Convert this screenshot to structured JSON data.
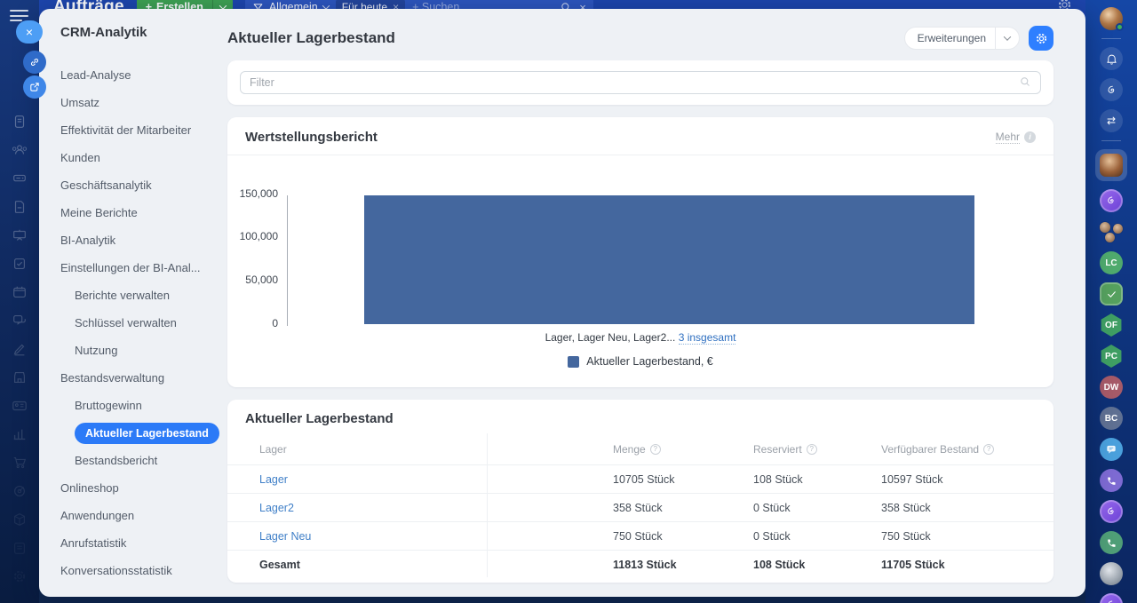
{
  "icons": {
    "plus": "+",
    "close": "×",
    "swap": "⇄",
    "question": "?",
    "info": "i"
  },
  "topbar": {
    "title": "Aufträge",
    "create_label": "Erstellen",
    "filter_preset": "Allgemein",
    "filter_chip": "Für heute",
    "search_placeholder": "Suchen"
  },
  "menu": {
    "title": "CRM-Analytik",
    "items": [
      {
        "label": "Lead-Analyse"
      },
      {
        "label": "Umsatz"
      },
      {
        "label": "Effektivität der Mitarbeiter"
      },
      {
        "label": "Kunden"
      },
      {
        "label": "Geschäftsanalytik"
      },
      {
        "label": "Meine Berichte"
      },
      {
        "label": "BI-Analytik"
      },
      {
        "label": "Einstellungen der BI-Anal..."
      },
      {
        "label": "Berichte verwalten"
      },
      {
        "label": "Schlüssel verwalten"
      },
      {
        "label": "Nutzung"
      },
      {
        "label": "Bestandsverwaltung"
      },
      {
        "label": "Bruttogewinn"
      },
      {
        "label": "Aktueller Lagerbestand"
      },
      {
        "label": "Bestandsbericht"
      },
      {
        "label": "Onlineshop"
      },
      {
        "label": "Anwendungen"
      },
      {
        "label": "Anrufstatistik"
      },
      {
        "label": "Konversationsstatistik"
      }
    ]
  },
  "header": {
    "title": "Aktueller Lagerbestand",
    "extensions_label": "Erweiterungen"
  },
  "filter": {
    "placeholder": "Filter"
  },
  "chart_card": {
    "title": "Wertstellungsbericht",
    "more_label": "Mehr",
    "caption": "Lager, Lager Neu, Lager2...",
    "caption_link": "3 insgesamt",
    "legend": "Aktueller Lagerbestand, €"
  },
  "chart_data": {
    "type": "bar",
    "title": "Wertstellungsbericht",
    "categories": [
      "Lager, Lager Neu, Lager2 (3 insgesamt)"
    ],
    "series": [
      {
        "name": "Aktueller Lagerbestand, €",
        "values": [
          148900
        ]
      }
    ],
    "ylim": [
      0,
      150000
    ],
    "yticks": [
      "150,000",
      "100,000",
      "50,000",
      "0"
    ],
    "bar_color": "#44679E",
    "grid": false,
    "legend_position": "bottom"
  },
  "table_card": {
    "title": "Aktueller Lagerbestand",
    "columns": [
      "Lager",
      "Menge",
      "Reserviert",
      "Verfügbarer Bestand"
    ],
    "rows": [
      {
        "name": "Lager",
        "menge": "10705 Stück",
        "reserviert": "108 Stück",
        "verfuegbar": "10597 Stück"
      },
      {
        "name": "Lager2",
        "menge": "358 Stück",
        "reserviert": "0 Stück",
        "verfuegbar": "358 Stück"
      },
      {
        "name": "Lager Neu",
        "menge": "750 Stück",
        "reserviert": "0 Stück",
        "verfuegbar": "750 Stück"
      }
    ],
    "total": {
      "name": "Gesamt",
      "menge": "11813 Stück",
      "reserviert": "108 Stück",
      "verfuegbar": "11705 Stück"
    }
  },
  "right_rail": {
    "initials": [
      "LC",
      "OF",
      "PC",
      "DW",
      "BC"
    ]
  },
  "colors": {
    "accent": "#2E7FFF",
    "bar": "#44679E",
    "link": "#4180C8",
    "topbar": "#1D45AC",
    "create_green": "#3EA152",
    "active_pill": "#2B7AF7"
  }
}
